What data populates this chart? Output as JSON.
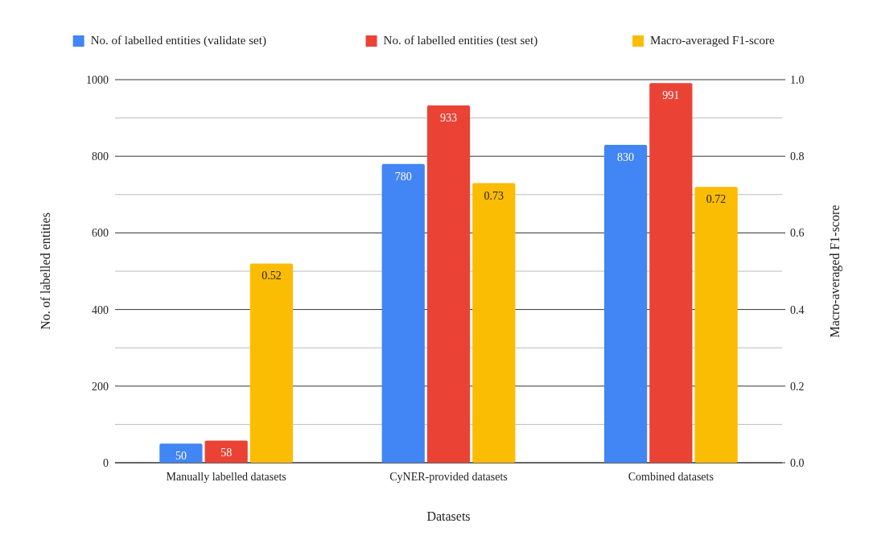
{
  "chart_data": {
    "type": "bar",
    "xlabel": "Datasets",
    "ylabel": "No. of labelled entities",
    "y2label": "Macro-averaged F1-score",
    "categories": [
      "Manually labelled datasets",
      "CyNER-provided datasets",
      "Combined datasets"
    ],
    "series": [
      {
        "name": "No. of labelled entities (validate set)",
        "color": "#4285f4",
        "values": [
          50,
          780,
          830
        ]
      },
      {
        "name": "No. of labelled entities (test set)",
        "color": "#ea4335",
        "values": [
          58,
          933,
          991
        ]
      },
      {
        "name": "Macro-averaged F1-score",
        "color": "#fbbc04",
        "values": [
          0.52,
          0.73,
          0.72
        ],
        "axis": "y2"
      }
    ],
    "ylim": [
      0,
      1000
    ],
    "yticks": [
      0,
      {
        "value": 100,
        "label": null
      },
      200,
      {
        "value": 300,
        "label": null
      },
      400,
      {
        "value": 500,
        "label": null
      },
      600,
      {
        "value": 700,
        "label": null
      },
      800,
      {
        "value": 900,
        "label": null
      },
      1000
    ],
    "y2lim": [
      0,
      1
    ],
    "y2ticks": [
      {
        "value": 0,
        "label": "0.0"
      },
      0.2,
      0.4,
      0.6,
      0.8,
      {
        "value": 1,
        "label": "1.0"
      }
    ],
    "grid": "y",
    "legend": "top",
    "data_labels": true
  }
}
